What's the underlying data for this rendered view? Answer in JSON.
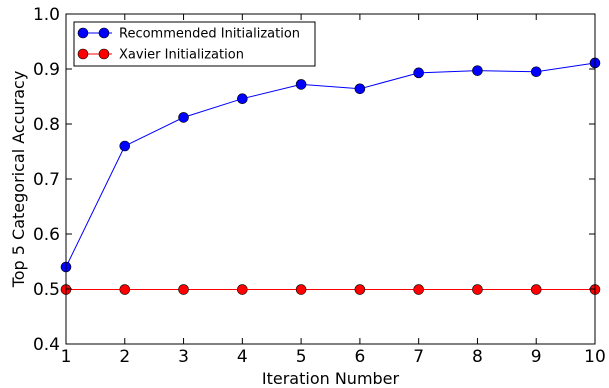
{
  "chart_data": {
    "type": "line",
    "title": "",
    "xlabel": "Iteration Number",
    "ylabel": "Top 5 Categorical Accuracy",
    "xlim": [
      1,
      10
    ],
    "ylim": [
      0.4,
      1.0
    ],
    "x_ticks": [
      "1",
      "2",
      "3",
      "4",
      "5",
      "6",
      "7",
      "8",
      "9",
      "10"
    ],
    "y_ticks": [
      "0.4",
      "0.5",
      "0.6",
      "0.7",
      "0.8",
      "0.9",
      "1.0"
    ],
    "grid": false,
    "legend_position": "top-left",
    "x": [
      1,
      2,
      3,
      4,
      5,
      6,
      7,
      8,
      9,
      10
    ],
    "series": [
      {
        "name": "Recommended Initialization",
        "color": "#0000ff",
        "values": [
          0.54,
          0.76,
          0.812,
          0.846,
          0.872,
          0.864,
          0.893,
          0.897,
          0.895,
          0.911
        ]
      },
      {
        "name": "Xavier Initialization",
        "color": "#ff0000",
        "values": [
          0.499,
          0.499,
          0.499,
          0.499,
          0.499,
          0.499,
          0.499,
          0.499,
          0.499,
          0.499
        ]
      }
    ]
  }
}
